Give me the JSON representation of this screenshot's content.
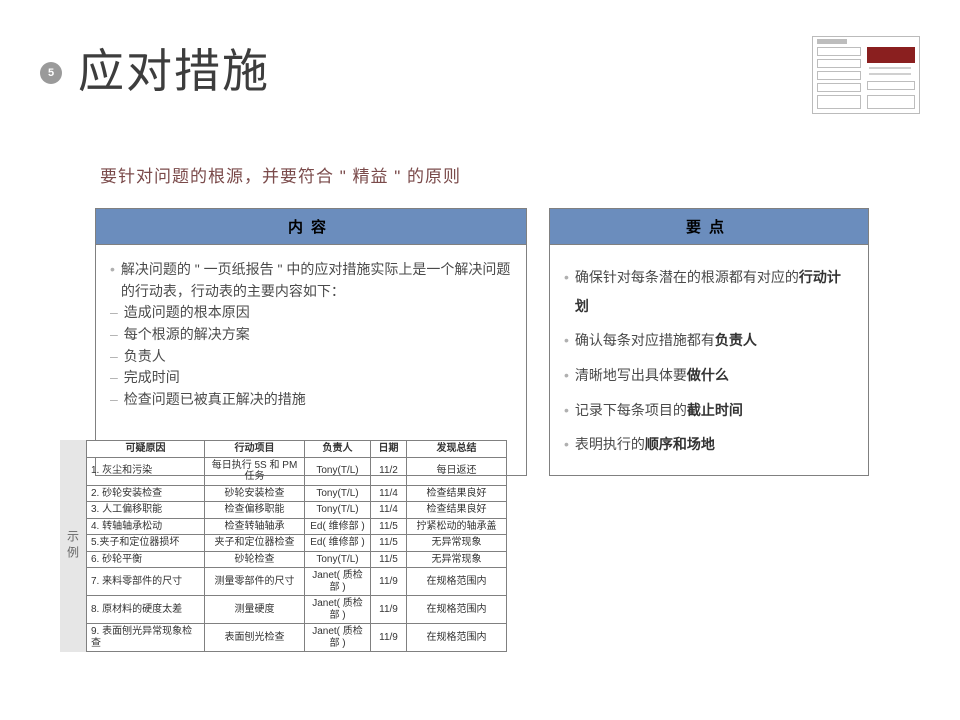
{
  "page_number": "5",
  "title": "应对措施",
  "subtitle": "要针对问题的根源，并要符合 \" 精益 \" 的原则",
  "panels": {
    "left": {
      "header": "内容",
      "intro": "解决问题的 \" 一页纸报告 \" 中的应对措施实际上是一个解决问题的行动表，行动表的主要内容如下：",
      "items": [
        "造成问题的根本原因",
        "每个根源的解决方案",
        "负责人",
        "完成时间",
        "检查问题已被真正解决的措施"
      ]
    },
    "right": {
      "header": "要点",
      "points": [
        {
          "pre": "确保针对每条潜在的根源都有对应的",
          "bold": "行动计划",
          "post": ""
        },
        {
          "pre": "确认每条对应措施都有",
          "bold": "负责人",
          "post": ""
        },
        {
          "pre": "清晰地写出具体要",
          "bold": "做什么",
          "post": ""
        },
        {
          "pre": "记录下每条项目的",
          "bold": "截止时间",
          "post": ""
        },
        {
          "pre": "表明执行的",
          "bold": "顺序和场地",
          "post": ""
        }
      ]
    }
  },
  "example": {
    "tab_label": "示例",
    "columns": [
      "可疑原因",
      "行动项目",
      "负责人",
      "日期",
      "发现总结"
    ],
    "rows": [
      [
        "1. 灰尘和污染",
        "每日执行 5S 和 PM 任务",
        "Tony(T/L)",
        "11/2",
        "每日返还"
      ],
      [
        "2. 砂轮安装检查",
        "砂轮安装检查",
        "Tony(T/L)",
        "11/4",
        "检查结果良好"
      ],
      [
        "3. 人工偏移职能",
        "检查偏移职能",
        "Tony(T/L)",
        "11/4",
        "检查结果良好"
      ],
      [
        "4. 转轴轴承松动",
        "检查转轴轴承",
        "Ed( 维修部 )",
        "11/5",
        "拧紧松动的轴承盖"
      ],
      [
        "5.夹子和定位器损坏",
        "夹子和定位器检查",
        "Ed( 维修部 )",
        "11/5",
        "无异常现象"
      ],
      [
        "6. 砂轮平衡",
        "砂轮检查",
        "Tony(T/L)",
        "11/5",
        "无异常现象"
      ],
      [
        "7. 来料零部件的尺寸",
        "测量零部件的尺寸",
        "Janet( 质检部 )",
        "11/9",
        "在规格范围内"
      ],
      [
        "8. 原材料的硬度太差",
        "测量硬度",
        "Janet( 质检部 )",
        "11/9",
        "在规格范围内"
      ],
      [
        "9. 表面刨光异常现象检查",
        "表面刨光检查",
        "Janet( 质检部 )",
        "11/9",
        "在规格范围内"
      ]
    ]
  },
  "colors": {
    "header_blue": "#6b8dbd",
    "tab_grey": "#e6e6e6",
    "thumb_highlight": "#8a1f1f"
  }
}
